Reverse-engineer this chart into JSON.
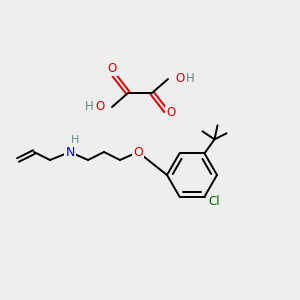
{
  "bg_color": "#eeeeee",
  "atom_colors": {
    "O": "#dd0000",
    "N": "#0000cc",
    "Cl": "#006600",
    "C": "#000000",
    "H": "#668888"
  },
  "bond_color": "#000000",
  "bond_width": 1.4,
  "figsize": [
    3.0,
    3.0
  ],
  "dpi": 100
}
